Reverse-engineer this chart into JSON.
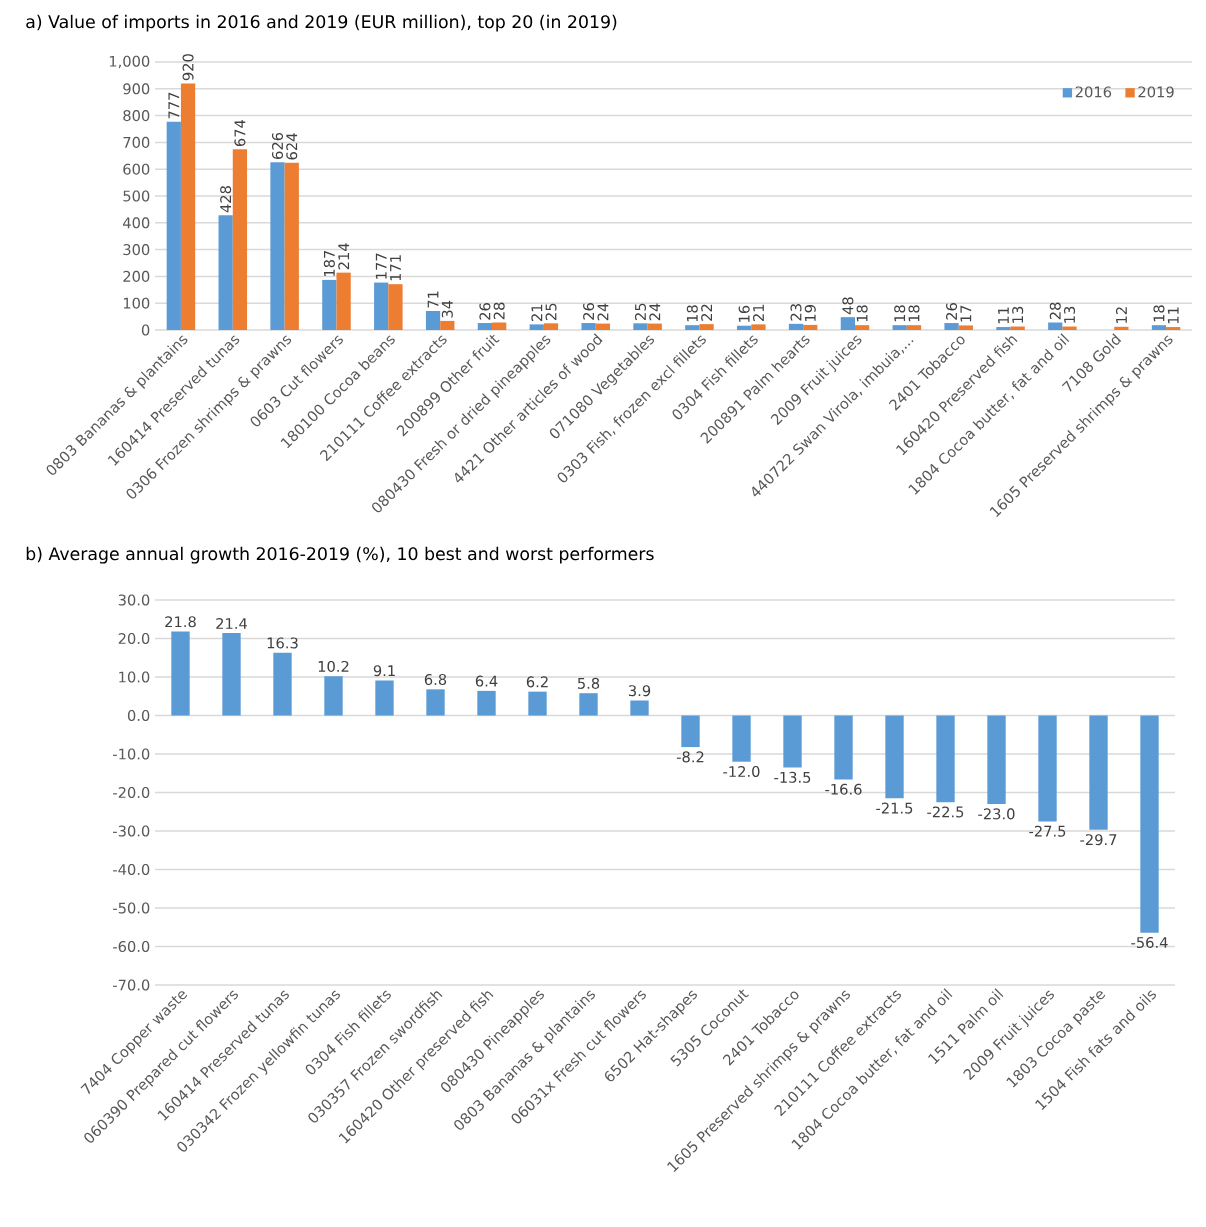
{
  "chart_data": [
    {
      "type": "bar",
      "title": "a) Value of imports in 2016 and 2019 (EUR million), top 20 (in 2019)",
      "categories": [
        "0803 Bananas & plantains",
        "160414 Preserved tunas",
        "0306 Frozen shrimps & prawns",
        "0603 Cut flowers",
        "180100 Cocoa beans",
        "210111 Coffee extracts",
        "200899 Other fruit",
        "080430 Fresh or dried pineapples",
        "4421 Other articles of wood",
        "071080 Vegetables",
        "0303 Fish, frozen excl fillets",
        "0304 Fish fillets",
        "200891 Palm hearts",
        "2009 Fruit juices",
        "440722 Swan Virola, imbuia,...",
        "2401 Tobacco",
        "160420 Preserved fish",
        "1804 Cocoa butter, fat and oil",
        "7108 Gold",
        "1605 Preserved shrimps & prawns"
      ],
      "series": [
        {
          "name": "2016",
          "color": "#5b9bd5",
          "values": [
            777,
            428,
            626,
            187,
            177,
            71,
            26,
            21,
            26,
            25,
            18,
            16,
            23,
            48,
            18,
            26,
            11,
            28,
            null,
            18
          ]
        },
        {
          "name": "2019",
          "color": "#ed7d31",
          "values": [
            920,
            674,
            624,
            214,
            171,
            34,
            28,
            25,
            24,
            24,
            22,
            21,
            19,
            18,
            18,
            17,
            13,
            13,
            12,
            11
          ]
        }
      ],
      "ylim": [
        0,
        1000
      ],
      "yticks": [
        0,
        100,
        200,
        300,
        400,
        500,
        600,
        700,
        800,
        900,
        {
          "value": 1000,
          "label": "1,000"
        }
      ],
      "grid": "y",
      "legend": "top right",
      "data_labels": true
    },
    {
      "type": "bar",
      "title": "b) Average annual growth 2016-2019 (%), 10 best and worst performers",
      "categories": [
        "7404 Copper waste",
        "060390 Prepared cut flowers",
        "160414 Preserved tunas",
        "030342 Frozen yellowfin tunas",
        "0304 Fish fillets",
        "030357 Frozen swordfish",
        "160420 Other preserved fish",
        "080430 Pineapples",
        "0803 Bananas & plantains",
        "06031x Fresh cut flowers",
        "6502 Hat-shapes",
        "5305 Coconut",
        "2401 Tobacco",
        "1605 Preserved shrimps & prawns",
        "210111 Coffee extracts",
        "1804 Cocoa butter, fat and oil",
        "1511 Palm oil",
        "2009 Fruit juices",
        "1803 Cocoa paste",
        "1504 Fish fats and oils"
      ],
      "values": [
        21.8,
        21.4,
        16.3,
        10.2,
        9.1,
        6.8,
        6.4,
        6.2,
        5.8,
        3.9,
        -8.2,
        -12.0,
        -13.5,
        -16.6,
        -21.5,
        -22.5,
        -23.0,
        -27.5,
        -29.7,
        -56.4
      ],
      "color": "#5b9bd5",
      "value_labels": [
        "21.8",
        "21.4",
        "16.3",
        "10.2",
        "9.1",
        "6.8",
        "6.4",
        "6.2",
        "5.8",
        "3.9",
        "-8.2",
        "-12.0",
        "-13.5",
        "-16.6",
        "-21.5",
        "-22.5",
        "-23.0",
        "-27.5",
        "-29.7",
        "-56.4"
      ],
      "ylim": [
        -70,
        30
      ],
      "yticks": [
        {
          "value": -70,
          "label": "-70.0"
        },
        {
          "value": -60,
          "label": "-60.0"
        },
        {
          "value": -50,
          "label": "-50.0"
        },
        {
          "value": -40,
          "label": "-40.0"
        },
        {
          "value": -30,
          "label": "-30.0"
        },
        {
          "value": -20,
          "label": "-20.0"
        },
        {
          "value": -10,
          "label": "-10.0"
        },
        {
          "value": 0,
          "label": "0.0"
        },
        {
          "value": 10,
          "label": "10.0"
        },
        {
          "value": 20,
          "label": "20.0"
        },
        {
          "value": 30,
          "label": "30.0"
        }
      ],
      "grid": "y"
    }
  ]
}
